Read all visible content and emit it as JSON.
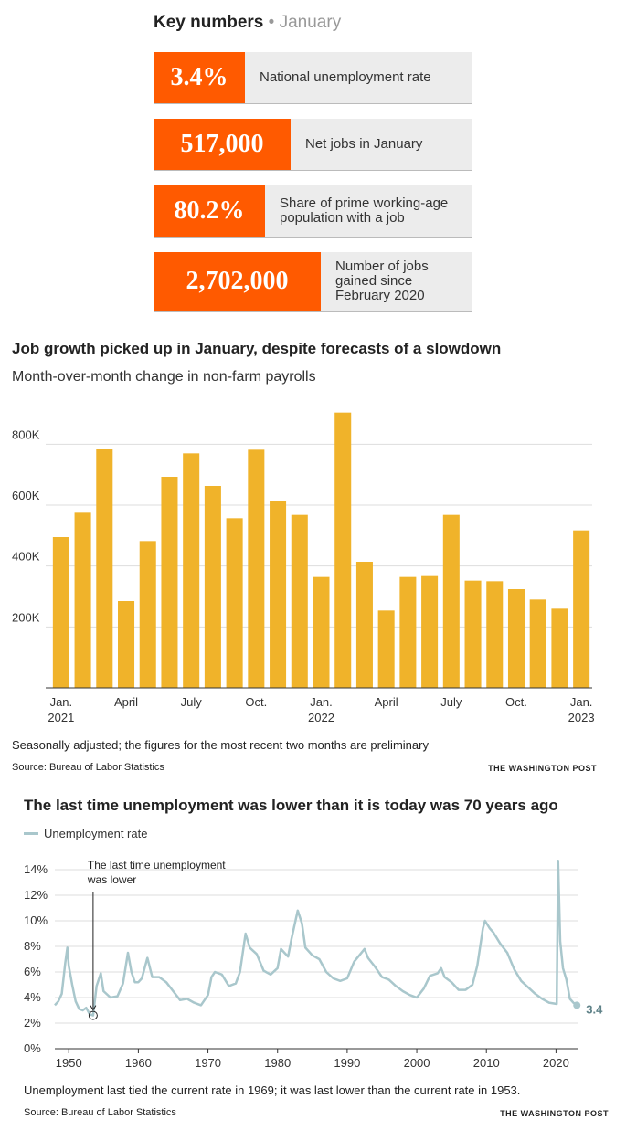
{
  "key_numbers": {
    "title": "Key numbers",
    "subtitle": "January",
    "items": [
      {
        "value": "3.4%",
        "label": "National unemployment rate"
      },
      {
        "value": "517,000",
        "label": "Net jobs in January"
      },
      {
        "value": "80.2%",
        "label": "Share of prime working-age population with a job"
      },
      {
        "value": "2,702,000",
        "label": "Number of jobs gained since February 2020"
      }
    ]
  },
  "colors": {
    "accent": "#ff5a00",
    "bar": "#f0b32a",
    "line": "#a9c7cc"
  },
  "jobs_chart": {
    "note": "Seasonally adjusted; the figures for the most recent two months are preliminary",
    "source": "Source: Bureau of Labor Statistics",
    "credit": "THE WASHINGTON POST"
  },
  "unemp_chart": {
    "note": "Unemployment last tied the current rate in 1969; it was last lower than the current rate in 1953.",
    "source": "Source: Bureau of Labor Statistics",
    "credit": "THE WASHINGTON POST",
    "annotation": "The last time unemployment was lower",
    "end_label": "3.4"
  },
  "chart_data": [
    {
      "type": "bar",
      "title": "Job growth picked up in January, despite forecasts of a slowdown",
      "subtitle": "Month-over-month change in non-farm payrolls",
      "x_ticks": [
        {
          "index": 0,
          "lines": [
            "Jan.",
            "2021"
          ]
        },
        {
          "index": 3,
          "lines": [
            "April"
          ]
        },
        {
          "index": 6,
          "lines": [
            "July"
          ]
        },
        {
          "index": 9,
          "lines": [
            "Oct."
          ]
        },
        {
          "index": 12,
          "lines": [
            "Jan.",
            "2022"
          ]
        },
        {
          "index": 15,
          "lines": [
            "April"
          ]
        },
        {
          "index": 18,
          "lines": [
            "July"
          ]
        },
        {
          "index": 21,
          "lines": [
            "Oct."
          ]
        },
        {
          "index": 24,
          "lines": [
            "Jan.",
            "2023"
          ]
        }
      ],
      "y_ticks": [
        {
          "value": 200000,
          "label": "200K"
        },
        {
          "value": 400000,
          "label": "400K"
        },
        {
          "value": 600000,
          "label": "600K"
        },
        {
          "value": 800000,
          "label": "800K"
        }
      ],
      "ylim": [
        0,
        900000
      ],
      "values": [
        495000,
        575000,
        785000,
        285000,
        482000,
        693000,
        770000,
        663000,
        557000,
        782000,
        615000,
        568000,
        364000,
        904000,
        414000,
        254000,
        364000,
        370000,
        568000,
        352000,
        350000,
        324000,
        290000,
        260000,
        517000
      ],
      "grid": true
    },
    {
      "type": "line",
      "title": "The last time unemployment was lower than it is today was 70 years ago",
      "legend": [
        "Unemployment rate"
      ],
      "legend_position": "top-left",
      "xlim": [
        1948,
        2023.1
      ],
      "ylim": [
        0,
        14
      ],
      "x_ticks": [
        1950,
        1960,
        1970,
        1980,
        1990,
        2000,
        2010,
        2020
      ],
      "y_ticks": [
        {
          "value": 0,
          "label": "0%"
        },
        {
          "value": 2,
          "label": "2%"
        },
        {
          "value": 4,
          "label": "4%"
        },
        {
          "value": 6,
          "label": "6%"
        },
        {
          "value": 8,
          "label": "8%"
        },
        {
          "value": 10,
          "label": "10%"
        },
        {
          "value": 12,
          "label": "12%"
        },
        {
          "value": 14,
          "label": "14%"
        }
      ],
      "series": [
        {
          "name": "Unemployment rate",
          "points": [
            [
              1948.0,
              3.4
            ],
            [
              1948.5,
              3.7
            ],
            [
              1949.0,
              4.3
            ],
            [
              1949.5,
              6.7
            ],
            [
              1949.8,
              7.9
            ],
            [
              1950.0,
              6.5
            ],
            [
              1950.5,
              5.0
            ],
            [
              1951.0,
              3.7
            ],
            [
              1951.5,
              3.1
            ],
            [
              1952.0,
              3.0
            ],
            [
              1952.5,
              3.2
            ],
            [
              1953.0,
              2.7
            ],
            [
              1953.5,
              2.6
            ],
            [
              1954.0,
              4.9
            ],
            [
              1954.6,
              5.9
            ],
            [
              1955.0,
              4.5
            ],
            [
              1956.0,
              4.0
            ],
            [
              1957.0,
              4.1
            ],
            [
              1957.8,
              5.1
            ],
            [
              1958.5,
              7.5
            ],
            [
              1959.0,
              6.0
            ],
            [
              1959.5,
              5.2
            ],
            [
              1960.0,
              5.2
            ],
            [
              1960.5,
              5.5
            ],
            [
              1961.3,
              7.1
            ],
            [
              1962.0,
              5.6
            ],
            [
              1963.0,
              5.6
            ],
            [
              1964.0,
              5.2
            ],
            [
              1965.0,
              4.5
            ],
            [
              1966.0,
              3.8
            ],
            [
              1967.0,
              3.9
            ],
            [
              1968.0,
              3.6
            ],
            [
              1969.0,
              3.4
            ],
            [
              1970.0,
              4.2
            ],
            [
              1970.5,
              5.6
            ],
            [
              1971.0,
              6.0
            ],
            [
              1972.0,
              5.8
            ],
            [
              1973.0,
              4.9
            ],
            [
              1974.0,
              5.1
            ],
            [
              1974.6,
              6.0
            ],
            [
              1975.4,
              9.0
            ],
            [
              1976.0,
              7.9
            ],
            [
              1977.0,
              7.4
            ],
            [
              1978.0,
              6.1
            ],
            [
              1979.0,
              5.8
            ],
            [
              1980.0,
              6.3
            ],
            [
              1980.5,
              7.8
            ],
            [
              1981.0,
              7.5
            ],
            [
              1981.5,
              7.2
            ],
            [
              1982.0,
              8.6
            ],
            [
              1982.9,
              10.8
            ],
            [
              1983.5,
              9.8
            ],
            [
              1984.0,
              7.9
            ],
            [
              1985.0,
              7.3
            ],
            [
              1986.0,
              7.0
            ],
            [
              1987.0,
              6.0
            ],
            [
              1988.0,
              5.5
            ],
            [
              1989.0,
              5.3
            ],
            [
              1990.0,
              5.5
            ],
            [
              1991.0,
              6.8
            ],
            [
              1992.5,
              7.8
            ],
            [
              1993.0,
              7.1
            ],
            [
              1994.0,
              6.4
            ],
            [
              1995.0,
              5.6
            ],
            [
              1996.0,
              5.4
            ],
            [
              1997.0,
              4.9
            ],
            [
              1998.0,
              4.5
            ],
            [
              1999.0,
              4.2
            ],
            [
              2000.0,
              4.0
            ],
            [
              2001.0,
              4.7
            ],
            [
              2001.9,
              5.7
            ],
            [
              2003.0,
              5.9
            ],
            [
              2003.5,
              6.3
            ],
            [
              2004.0,
              5.6
            ],
            [
              2005.0,
              5.2
            ],
            [
              2006.0,
              4.6
            ],
            [
              2007.0,
              4.6
            ],
            [
              2008.0,
              5.0
            ],
            [
              2008.7,
              6.5
            ],
            [
              2009.5,
              9.4
            ],
            [
              2009.8,
              10.0
            ],
            [
              2010.5,
              9.4
            ],
            [
              2011.0,
              9.1
            ],
            [
              2012.0,
              8.2
            ],
            [
              2013.0,
              7.5
            ],
            [
              2014.0,
              6.2
            ],
            [
              2015.0,
              5.3
            ],
            [
              2016.0,
              4.8
            ],
            [
              2017.0,
              4.3
            ],
            [
              2018.0,
              3.9
            ],
            [
              2019.0,
              3.6
            ],
            [
              2020.1,
              3.5
            ],
            [
              2020.3,
              14.7
            ],
            [
              2020.6,
              8.4
            ],
            [
              2021.0,
              6.3
            ],
            [
              2021.5,
              5.4
            ],
            [
              2022.0,
              3.9
            ],
            [
              2022.5,
              3.6
            ],
            [
              2023.0,
              3.4
            ]
          ]
        }
      ],
      "highlight_points": [
        [
          1953.5,
          2.6
        ],
        [
          2023.0,
          3.4
        ]
      ]
    }
  ]
}
